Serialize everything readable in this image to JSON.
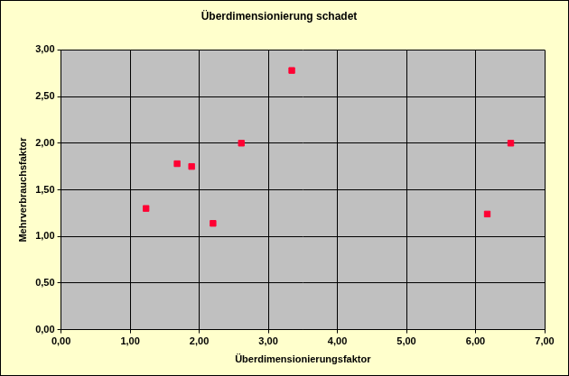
{
  "chart_data": {
    "type": "scatter",
    "title": "Überdimensionierung schadet",
    "x_label": "Überdimensionierungsfaktor",
    "y_label": "Mehrverbrauchsfaktor",
    "x": [
      1.23,
      1.68,
      1.89,
      2.2,
      2.61,
      3.34,
      6.17,
      6.51
    ],
    "values": [
      1.3,
      1.78,
      1.75,
      1.14,
      2.0,
      2.78,
      1.24,
      2.0
    ],
    "color": "#ff0033",
    "marker": "square",
    "grid": true,
    "xlim": [
      0,
      7
    ],
    "xticks": [
      {
        "value": 0,
        "label": "0,00"
      },
      {
        "value": 1,
        "label": "1,00"
      },
      {
        "value": 2,
        "label": "2,00"
      },
      {
        "value": 3,
        "label": "3,00"
      },
      {
        "value": 4,
        "label": "4,00"
      },
      {
        "value": 5,
        "label": "5,00"
      },
      {
        "value": 6,
        "label": "6,00"
      },
      {
        "value": 7,
        "label": "7,00"
      }
    ],
    "ylim": [
      0,
      3
    ],
    "yticks": [
      {
        "value": 0,
        "label": "0,00"
      },
      {
        "value": 0.5,
        "label": "0,50"
      },
      {
        "value": 1,
        "label": "1,00"
      },
      {
        "value": 1.5,
        "label": "1,50"
      },
      {
        "value": 2,
        "label": "2,00"
      },
      {
        "value": 2.5,
        "label": "2,50"
      },
      {
        "value": 3,
        "label": "3,00"
      }
    ]
  }
}
